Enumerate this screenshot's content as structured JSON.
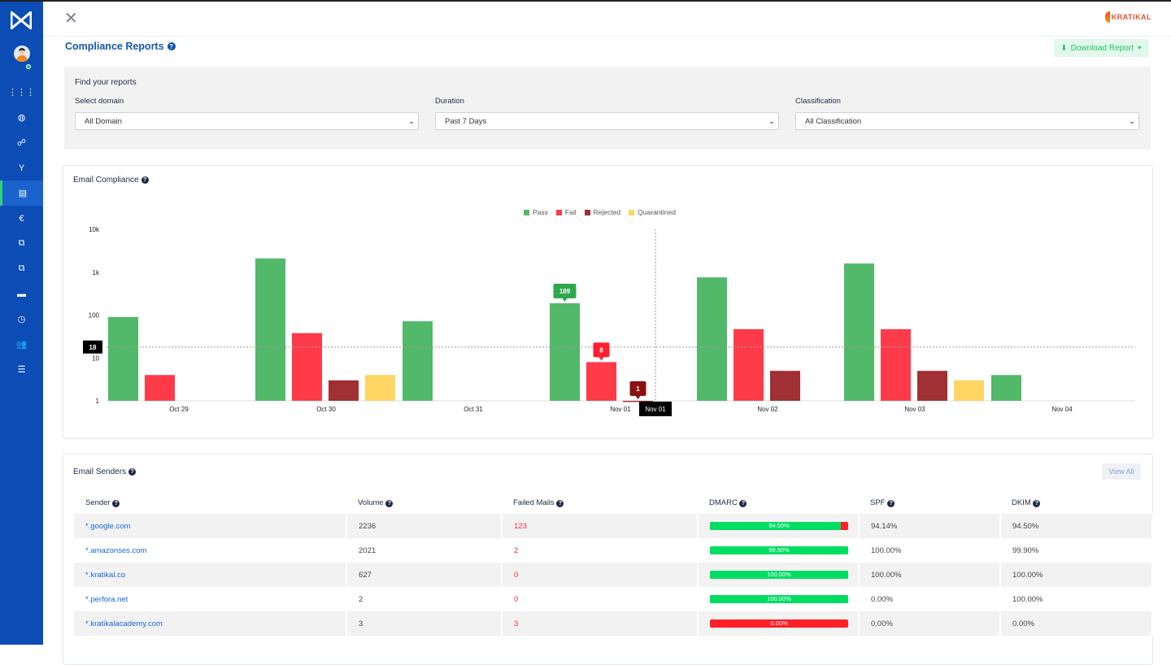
{
  "sidebar": {
    "items": [
      "apps",
      "globe",
      "network",
      "fork",
      "reports",
      "analytics",
      "copy",
      "transfer",
      "vault",
      "timer",
      "users",
      "settings"
    ],
    "active": "reports",
    "accent": "#2ed47a",
    "bg": "#0b4db5"
  },
  "header": {
    "brand": "KRATIKAL",
    "title": "Compliance Reports",
    "download_label": "Download Report"
  },
  "filters": {
    "title": "Find your reports",
    "domain": {
      "label": "Select domain",
      "value": "All Domain"
    },
    "duration": {
      "label": "Duration",
      "value": "Past 7 Days"
    },
    "classification": {
      "label": "Classification",
      "value": "All Classification"
    }
  },
  "compliance": {
    "title": "Email Compliance"
  },
  "chart_data": {
    "type": "bar",
    "scale": "log",
    "ylim": [
      1,
      10000
    ],
    "yticks": [
      "1",
      "10",
      "100",
      "1k",
      "10k"
    ],
    "categories": [
      "Oct 29",
      "Oct 30",
      "Oct 31",
      "Nov 01",
      "Nov 02",
      "Nov 03",
      "Nov 04"
    ],
    "legend_position": "top-center",
    "grid": false,
    "series": [
      {
        "name": "Pass",
        "color": "#52b96b",
        "values": [
          90,
          2100,
          72,
          189,
          760,
          1600,
          4
        ]
      },
      {
        "name": "Fail",
        "color": "#ff3b4a",
        "values": [
          4,
          38,
          0,
          8,
          47,
          47,
          0
        ]
      },
      {
        "name": "Rejected",
        "color": "#a03034",
        "values": [
          0,
          3,
          0,
          1,
          5,
          5,
          0
        ]
      },
      {
        "name": "Quarantined",
        "color": "#ffd663",
        "values": [
          0,
          4,
          0,
          0,
          0,
          3,
          0
        ]
      }
    ],
    "hover": {
      "category": "Nov 01",
      "y_readout": "18",
      "tooltips": [
        "189",
        "8",
        "1"
      ]
    }
  },
  "senders": {
    "title": "Email Senders",
    "view_all": "View All",
    "columns": [
      "Sender",
      "Volume",
      "Failed Mails",
      "DMARC",
      "SPF",
      "DKIM"
    ],
    "rows": [
      {
        "sender": "*.google.com",
        "volume": "2236",
        "failed": "123",
        "dmarc": "94.50%",
        "dmarc_pct": 94.5,
        "spf": "94.14%",
        "dkim": "94.50%"
      },
      {
        "sender": "*.amazonses.com",
        "volume": "2021",
        "failed": "2",
        "dmarc": "99.90%",
        "dmarc_pct": 99.9,
        "spf": "100.00%",
        "dkim": "99.90%"
      },
      {
        "sender": "*.kratikal.co",
        "volume": "627",
        "failed": "0",
        "dmarc": "100.00%",
        "dmarc_pct": 100,
        "spf": "100.00%",
        "dkim": "100.00%"
      },
      {
        "sender": "*.perfora.net",
        "volume": "2",
        "failed": "0",
        "dmarc": "100.00%",
        "dmarc_pct": 100,
        "spf": "0.00%",
        "dkim": "100.00%"
      },
      {
        "sender": "*.kratikalacademy.com",
        "volume": "3",
        "failed": "3",
        "dmarc": "0.00%",
        "dmarc_pct": 0,
        "spf": "0.00%",
        "dkim": "0.00%"
      }
    ]
  }
}
